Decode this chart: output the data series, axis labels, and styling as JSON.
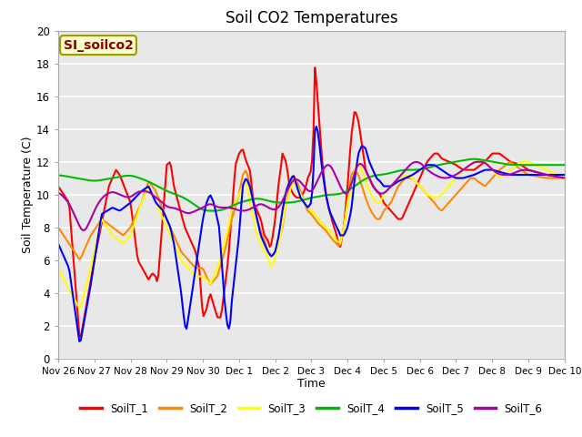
{
  "title": "Soil CO2 Temperatures",
  "xlabel": "Time",
  "ylabel": "Soil Temperature (C)",
  "annotation": "SI_soilco2",
  "annotation_color": "#8B0000",
  "annotation_bg": "#FFFFCC",
  "annotation_edge": "#999900",
  "ylim": [
    0,
    20
  ],
  "yticks": [
    0,
    2,
    4,
    6,
    8,
    10,
    12,
    14,
    16,
    18,
    20
  ],
  "xtick_labels": [
    "Nov 26",
    "Nov 27",
    "Nov 28",
    "Nov 29",
    "Nov 30",
    "Dec 1",
    "Dec 2",
    "Dec 3",
    "Dec 4",
    "Dec 5",
    "Dec 6",
    "Dec 7",
    "Dec 8",
    "Dec 9",
    "Dec 10"
  ],
  "colors": {
    "SoilT_1": "#FF0000",
    "SoilT_2": "#FF8800",
    "SoilT_3": "#FFFF00",
    "SoilT_4": "#00BB00",
    "SoilT_5": "#0000FF",
    "SoilT_6": "#AA00AA"
  },
  "fig_bg": "#FFFFFF",
  "plot_bg": "#E8E8E8",
  "grid_color": "#FFFFFF",
  "linewidth": 1.5
}
